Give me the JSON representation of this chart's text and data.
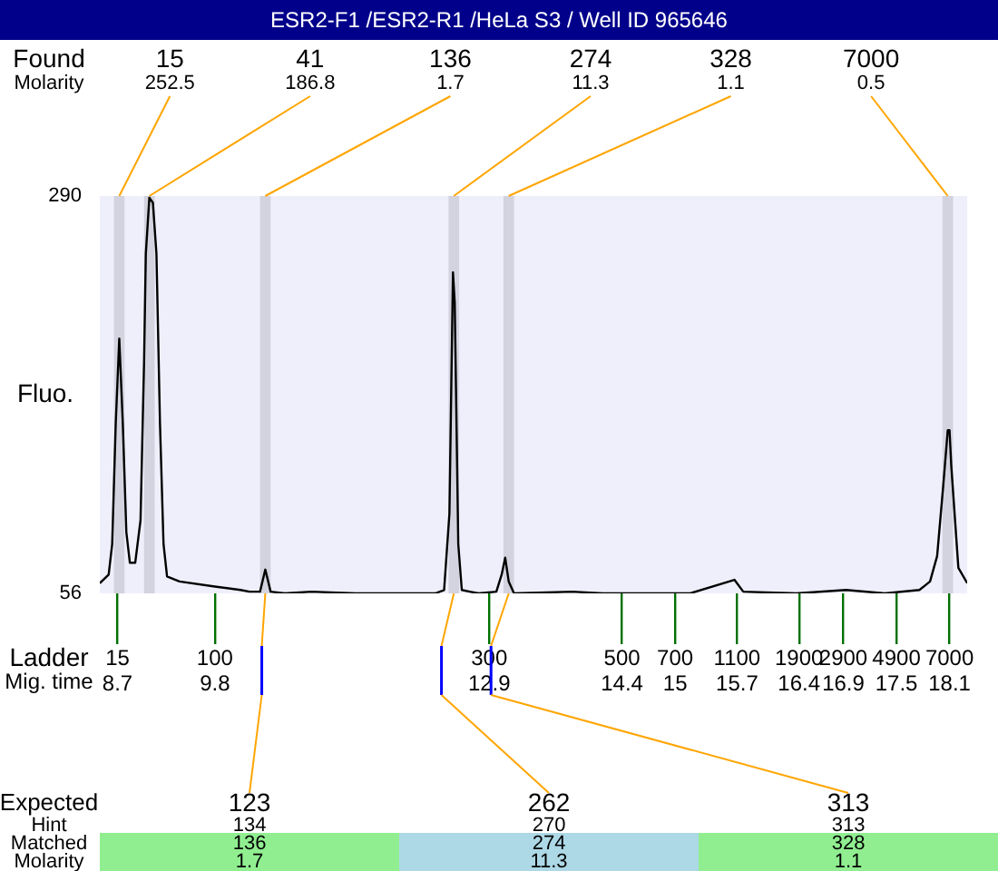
{
  "chart_data": {
    "type": "line",
    "title": "ESR2-F1 /ESR2-R1 /HeLa S3 / Well ID 965646",
    "xlabel": "Mig. time",
    "ylabel": "Fluo.",
    "annotations": [
      "Found",
      "Molarity",
      "Ladder",
      "Expected",
      "Hint",
      "Matched",
      "Molarity",
      {
        "text": "15",
        "x": 8.7,
        "y": 56
      },
      {
        "text": "100",
        "x": 9.8,
        "y": 56
      },
      {
        "text": "300",
        "x": 12.9,
        "y": 56
      },
      {
        "text": "500",
        "x": 14.4,
        "y": 56
      },
      {
        "text": "700",
        "x": 15,
        "y": 56
      },
      {
        "text": "1100",
        "x": 15.7,
        "y": 56
      },
      {
        "text": "1900",
        "x": 16.4,
        "y": 56
      },
      {
        "text": "2900",
        "x": 16.9,
        "y": 56
      },
      {
        "text": "4900",
        "x": 17.5,
        "y": 56
      },
      {
        "text": "7000",
        "x": 18.1,
        "y": 56
      },
      {
        "text": "123",
        "x": 10.33
      },
      "134",
      "136",
      "1.7",
      {
        "text": "262",
        "x": 12.36
      },
      "270",
      "274",
      "11.3",
      {
        "text": "313",
        "x": 12.92
      },
      "313",
      "328",
      "1.1"
    ],
    "xlim": [
      8.5,
      18.3
    ],
    "ylim": [
      56,
      290
    ],
    "yticks": [
      56,
      290
    ],
    "xticks": [
      8.7,
      9.8,
      12.9,
      14.4,
      15,
      15.7,
      16.4,
      16.9,
      17.5,
      18.1
    ],
    "marker": "none",
    "line_style": "solid",
    "series": [
      {
        "color": "#000000",
        "x": [
          8.5,
          8.6,
          8.64,
          8.68,
          8.72,
          8.76,
          8.8,
          8.84,
          8.9,
          8.96,
          9.0,
          9.02,
          9.06,
          9.1,
          9.14,
          9.18,
          9.22,
          9.26,
          9.4,
          9.8,
          10.09,
          10.19,
          10.31,
          10.37,
          10.43,
          10.59,
          10.89,
          11.39,
          12.29,
          12.39,
          12.45,
          12.49,
          12.51,
          12.53,
          12.55,
          12.59,
          12.68,
          12.78,
          12.98,
          13.04,
          13.08,
          13.12,
          13.18,
          13.84,
          14.18,
          15.17,
          15.67,
          15.77,
          16.37,
          16.93,
          17.37,
          17.76,
          17.88,
          17.96,
          18.03,
          18.08,
          18.1,
          18.12,
          18.2,
          18.3
        ],
        "values": [
          62,
          67,
          85,
          156,
          206,
          156,
          92,
          74,
          74,
          99,
          192,
          256,
          289,
          286,
          256,
          156,
          85,
          66,
          63,
          60,
          58,
          57,
          57,
          70,
          57,
          56,
          57,
          56,
          56,
          58,
          103,
          245,
          227,
          156,
          85,
          58,
          57,
          56,
          57,
          67,
          77,
          63,
          56,
          57,
          56,
          56,
          64,
          57,
          56,
          58,
          56,
          58,
          63,
          78,
          120,
          152,
          152,
          131,
          71,
          62
        ]
      }
    ],
    "bands": [
      {
        "axis": "x",
        "from": 8.66,
        "to": 8.78,
        "label": "15\n252.5",
        "color": "#d3d3df"
      },
      {
        "axis": "x",
        "from": 9.0,
        "to": 9.12,
        "label": "41\n186.8",
        "color": "#d3d3df"
      },
      {
        "axis": "x",
        "from": 10.31,
        "to": 10.43,
        "label": "136\n1.7",
        "color": "#d3d3df"
      },
      {
        "axis": "x",
        "from": 12.44,
        "to": 12.56,
        "label": "274\n11.3",
        "color": "#d3d3df"
      },
      {
        "axis": "x",
        "from": 13.06,
        "to": 13.18,
        "label": "328\n1.1",
        "color": "#d3d3df"
      },
      {
        "axis": "x",
        "from": 18.02,
        "to": 18.14,
        "label": "7000\n0.5",
        "color": "#d3d3df"
      }
    ]
  }
}
